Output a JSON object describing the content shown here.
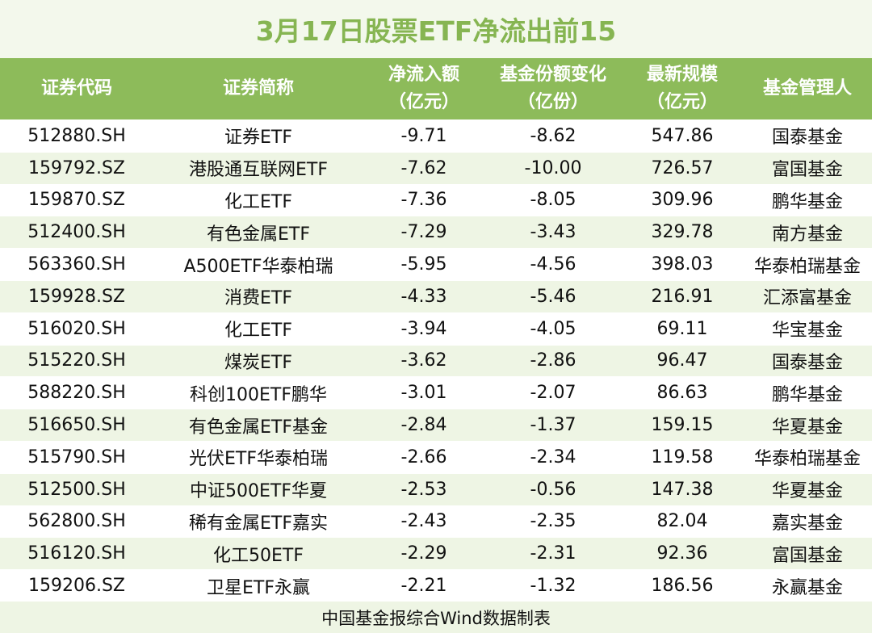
{
  "title": "3月17日股票ETF净流出前15",
  "table": {
    "header": [
      [
        "证券代码"
      ],
      [
        "证券简称"
      ],
      [
        "净流入额",
        "（亿元）"
      ],
      [
        "基金份额变化",
        "（亿份）"
      ],
      [
        "最新规模",
        "（亿元）"
      ],
      [
        "基金管理人"
      ]
    ],
    "rows": [
      [
        "512880.SH",
        "证券ETF",
        "-9.71",
        "-8.62",
        "547.86",
        "国泰基金"
      ],
      [
        "159792.SZ",
        "港股通互联网ETF",
        "-7.62",
        "-10.00",
        "726.57",
        "富国基金"
      ],
      [
        "159870.SZ",
        "化工ETF",
        "-7.36",
        "-8.05",
        "309.96",
        "鹏华基金"
      ],
      [
        "512400.SH",
        "有色金属ETF",
        "-7.29",
        "-3.43",
        "329.78",
        "南方基金"
      ],
      [
        "563360.SH",
        "A500ETF华泰柏瑞",
        "-5.95",
        "-4.56",
        "398.03",
        "华泰柏瑞基金"
      ],
      [
        "159928.SZ",
        "消费ETF",
        "-4.33",
        "-5.46",
        "216.91",
        "汇添富基金"
      ],
      [
        "516020.SH",
        "化工ETF",
        "-3.94",
        "-4.05",
        "69.11",
        "华宝基金"
      ],
      [
        "515220.SH",
        "煤炭ETF",
        "-3.62",
        "-2.86",
        "96.47",
        "国泰基金"
      ],
      [
        "588220.SH",
        "科创100ETF鹏华",
        "-3.01",
        "-2.07",
        "86.63",
        "鹏华基金"
      ],
      [
        "516650.SH",
        "有色金属ETF基金",
        "-2.84",
        "-1.37",
        "159.15",
        "华夏基金"
      ],
      [
        "515790.SH",
        "光伏ETF华泰柏瑞",
        "-2.66",
        "-2.34",
        "119.58",
        "华泰柏瑞基金"
      ],
      [
        "512500.SH",
        "中证500ETF华夏",
        "-2.53",
        "-0.56",
        "147.38",
        "华夏基金"
      ],
      [
        "562800.SH",
        "稀有金属ETF嘉实",
        "-2.43",
        "-2.35",
        "82.04",
        "嘉实基金"
      ],
      [
        "516120.SH",
        "化工50ETF",
        "-2.29",
        "-2.31",
        "92.36",
        "富国基金"
      ],
      [
        "159206.SZ",
        "卫星ETF永赢",
        "-2.21",
        "-1.32",
        "186.56",
        "永赢基金"
      ]
    ]
  },
  "footer": "中国基金报综合Wind数据制表"
}
